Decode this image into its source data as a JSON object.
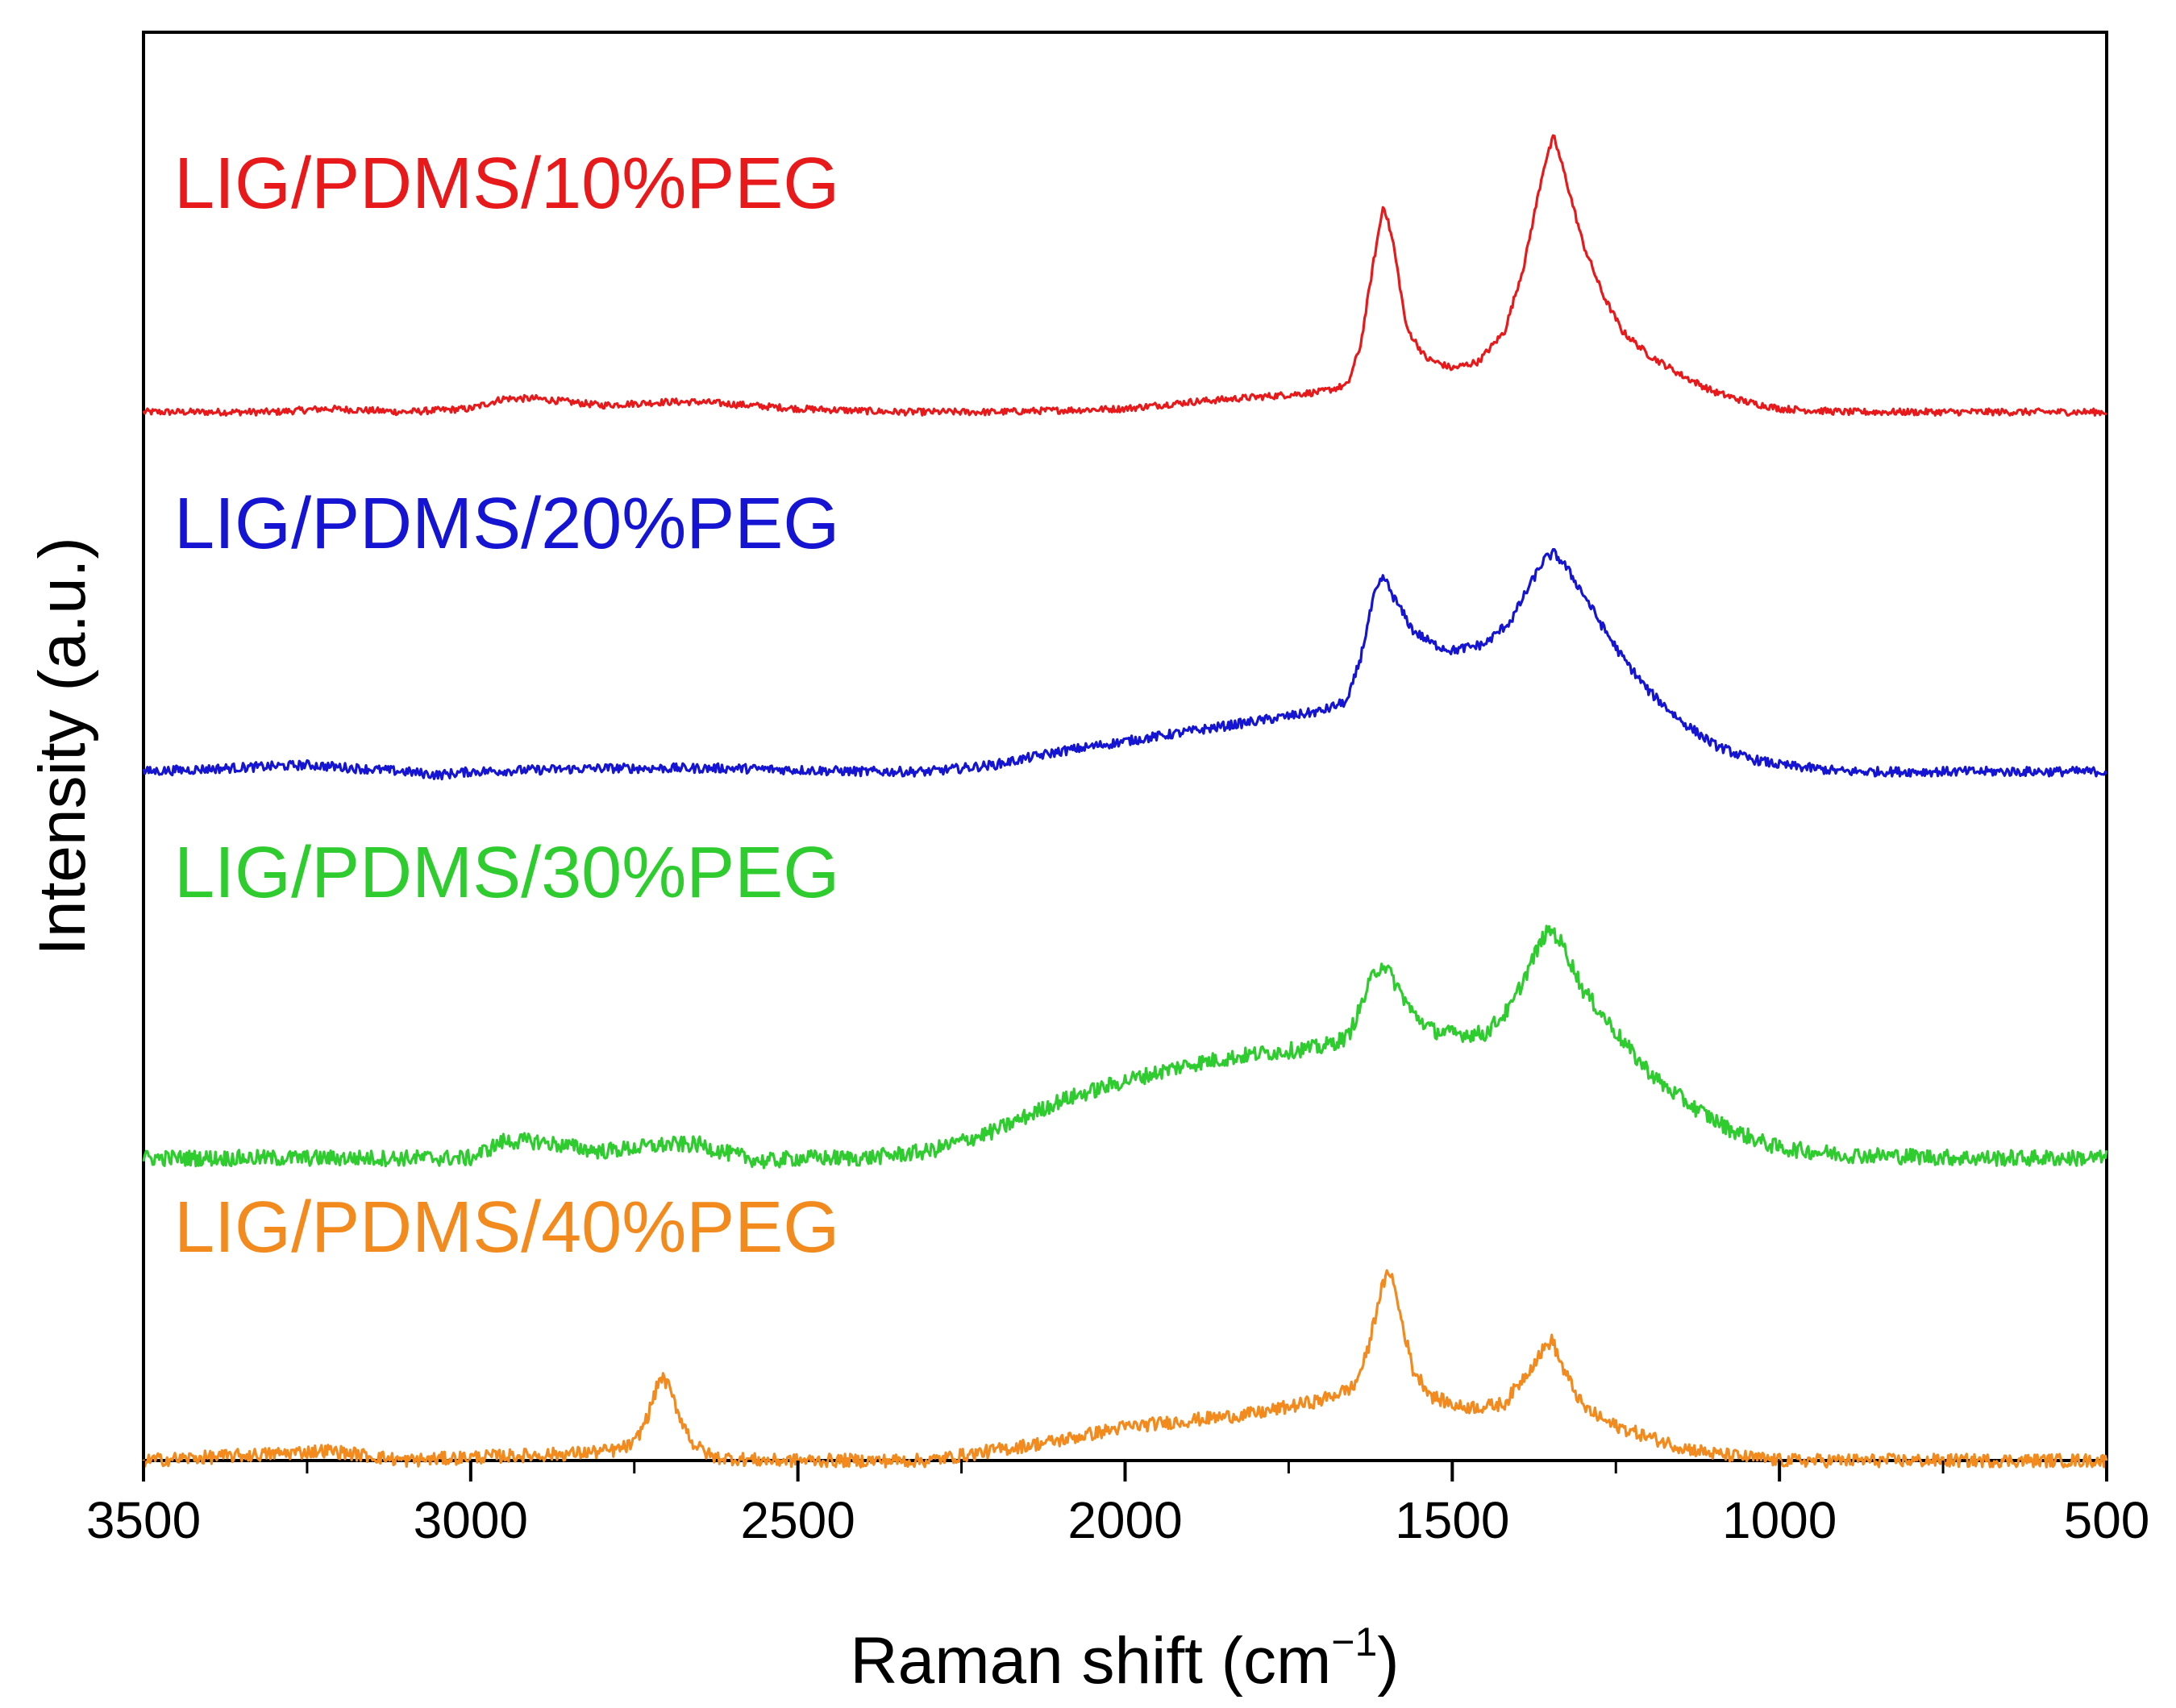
{
  "chart_data": {
    "type": "line",
    "title": "",
    "xlabel": "Raman shift (cm",
    "xlabel_sup": "−1",
    "xlabel_close": ")",
    "ylabel": "Intensity (a.u.)",
    "xlim": [
      3500,
      500
    ],
    "x_ticks": [
      3500,
      3000,
      2500,
      2000,
      1500,
      1000,
      500
    ],
    "x_minor_ticks": [
      3250,
      2750,
      2250,
      1750,
      1250,
      750
    ],
    "ylim": [
      0,
      4.25
    ],
    "y_ticks_shown": false,
    "grid": false,
    "series": [
      {
        "name": "LIG/PDMS/10%PEG",
        "color": "#e8191b",
        "offset": 3.12,
        "noise": 0.005,
        "points": [
          [
            3500,
            0
          ],
          [
            3300,
            0.0
          ],
          [
            3220,
            0.01
          ],
          [
            3100,
            0.0
          ],
          [
            3000,
            0.01
          ],
          [
            2950,
            0.04
          ],
          [
            2900,
            0.04
          ],
          [
            2800,
            0.02
          ],
          [
            2700,
            0.03
          ],
          [
            2650,
            0.03
          ],
          [
            2500,
            0.01
          ],
          [
            2350,
            0.0
          ],
          [
            2200,
            0.0
          ],
          [
            2000,
            0.01
          ],
          [
            1900,
            0.03
          ],
          [
            1760,
            0.05
          ],
          [
            1700,
            0.06
          ],
          [
            1660,
            0.08
          ],
          [
            1640,
            0.2
          ],
          [
            1620,
            0.45
          ],
          [
            1605,
            0.62
          ],
          [
            1590,
            0.5
          ],
          [
            1570,
            0.25
          ],
          [
            1540,
            0.16
          ],
          [
            1500,
            0.13
          ],
          [
            1460,
            0.15
          ],
          [
            1420,
            0.24
          ],
          [
            1390,
            0.44
          ],
          [
            1360,
            0.73
          ],
          [
            1345,
            0.82
          ],
          [
            1330,
            0.72
          ],
          [
            1300,
            0.5
          ],
          [
            1270,
            0.35
          ],
          [
            1240,
            0.24
          ],
          [
            1200,
            0.17
          ],
          [
            1150,
            0.11
          ],
          [
            1100,
            0.06
          ],
          [
            1050,
            0.03
          ],
          [
            1000,
            0.01
          ],
          [
            900,
            0.0
          ],
          [
            700,
            0.0
          ],
          [
            500,
            0.0
          ]
        ]
      },
      {
        "name": "LIG/PDMS/20%PEG",
        "color": "#1414d2",
        "offset": 2.05,
        "noise": 0.007,
        "points": [
          [
            3500,
            0
          ],
          [
            3250,
            0.02
          ],
          [
            3100,
            0.0
          ],
          [
            3050,
            -0.01
          ],
          [
            3000,
            0.0
          ],
          [
            2800,
            0.01
          ],
          [
            2600,
            0.01
          ],
          [
            2400,
            0.0
          ],
          [
            2300,
            0.0
          ],
          [
            2200,
            0.02
          ],
          [
            2100,
            0.06
          ],
          [
            2000,
            0.09
          ],
          [
            1900,
            0.12
          ],
          [
            1800,
            0.15
          ],
          [
            1700,
            0.18
          ],
          [
            1660,
            0.21
          ],
          [
            1640,
            0.34
          ],
          [
            1620,
            0.52
          ],
          [
            1605,
            0.58
          ],
          [
            1590,
            0.52
          ],
          [
            1560,
            0.42
          ],
          [
            1530,
            0.38
          ],
          [
            1500,
            0.36
          ],
          [
            1450,
            0.38
          ],
          [
            1410,
            0.45
          ],
          [
            1380,
            0.56
          ],
          [
            1360,
            0.63
          ],
          [
            1345,
            0.65
          ],
          [
            1330,
            0.62
          ],
          [
            1300,
            0.53
          ],
          [
            1270,
            0.43
          ],
          [
            1240,
            0.34
          ],
          [
            1200,
            0.24
          ],
          [
            1150,
            0.15
          ],
          [
            1100,
            0.08
          ],
          [
            1050,
            0.04
          ],
          [
            1000,
            0.02
          ],
          [
            900,
            0.0
          ],
          [
            700,
            0.0
          ],
          [
            500,
            0.0
          ]
        ]
      },
      {
        "name": "LIG/PDMS/30%PEG",
        "color": "#2ecc2e",
        "offset": 0.9,
        "noise": 0.012,
        "points": [
          [
            3500,
            0
          ],
          [
            3300,
            0.0
          ],
          [
            3100,
            0.0
          ],
          [
            3000,
            0.0
          ],
          [
            2950,
            0.05
          ],
          [
            2900,
            0.05
          ],
          [
            2800,
            0.02
          ],
          [
            2700,
            0.04
          ],
          [
            2650,
            0.04
          ],
          [
            2600,
            0.01
          ],
          [
            2550,
            -0.01
          ],
          [
            2500,
            0.0
          ],
          [
            2400,
            0.0
          ],
          [
            2300,
            0.02
          ],
          [
            2200,
            0.08
          ],
          [
            2100,
            0.17
          ],
          [
            2000,
            0.23
          ],
          [
            1900,
            0.28
          ],
          [
            1800,
            0.31
          ],
          [
            1700,
            0.33
          ],
          [
            1660,
            0.36
          ],
          [
            1640,
            0.45
          ],
          [
            1620,
            0.55
          ],
          [
            1605,
            0.58
          ],
          [
            1590,
            0.53
          ],
          [
            1560,
            0.43
          ],
          [
            1530,
            0.38
          ],
          [
            1500,
            0.37
          ],
          [
            1450,
            0.37
          ],
          [
            1410,
            0.45
          ],
          [
            1380,
            0.58
          ],
          [
            1360,
            0.66
          ],
          [
            1348,
            0.68
          ],
          [
            1330,
            0.63
          ],
          [
            1300,
            0.5
          ],
          [
            1260,
            0.4
          ],
          [
            1220,
            0.3
          ],
          [
            1180,
            0.22
          ],
          [
            1130,
            0.15
          ],
          [
            1080,
            0.09
          ],
          [
            1030,
            0.05
          ],
          [
            1000,
            0.03
          ],
          [
            900,
            0.01
          ],
          [
            700,
            0.0
          ],
          [
            500,
            0.0
          ]
        ]
      },
      {
        "name": "LIG/PDMS/40%PEG",
        "color": "#f28a1e",
        "offset": 0.0,
        "noise": 0.01,
        "points": [
          [
            3500,
            0
          ],
          [
            3300,
            0.02
          ],
          [
            3220,
            0.03
          ],
          [
            3100,
            0.0
          ],
          [
            3000,
            0.01
          ],
          [
            2850,
            0.02
          ],
          [
            2780,
            0.03
          ],
          [
            2750,
            0.05
          ],
          [
            2730,
            0.13
          ],
          [
            2710,
            0.25
          ],
          [
            2700,
            0.23
          ],
          [
            2680,
            0.13
          ],
          [
            2660,
            0.05
          ],
          [
            2630,
            0.01
          ],
          [
            2550,
            0.0
          ],
          [
            2400,
            0.0
          ],
          [
            2300,
            0.0
          ],
          [
            2200,
            0.03
          ],
          [
            2100,
            0.06
          ],
          [
            2000,
            0.1
          ],
          [
            1900,
            0.12
          ],
          [
            1800,
            0.14
          ],
          [
            1700,
            0.18
          ],
          [
            1650,
            0.22
          ],
          [
            1630,
            0.32
          ],
          [
            1610,
            0.5
          ],
          [
            1595,
            0.57
          ],
          [
            1580,
            0.44
          ],
          [
            1560,
            0.27
          ],
          [
            1530,
            0.19
          ],
          [
            1490,
            0.16
          ],
          [
            1450,
            0.16
          ],
          [
            1420,
            0.17
          ],
          [
            1390,
            0.25
          ],
          [
            1365,
            0.32
          ],
          [
            1348,
            0.36
          ],
          [
            1330,
            0.27
          ],
          [
            1300,
            0.16
          ],
          [
            1260,
            0.11
          ],
          [
            1200,
            0.07
          ],
          [
            1150,
            0.04
          ],
          [
            1100,
            0.02
          ],
          [
            1000,
            0.0
          ],
          [
            900,
            0.0
          ],
          [
            700,
            0.0
          ],
          [
            500,
            0.0
          ]
        ]
      }
    ]
  }
}
